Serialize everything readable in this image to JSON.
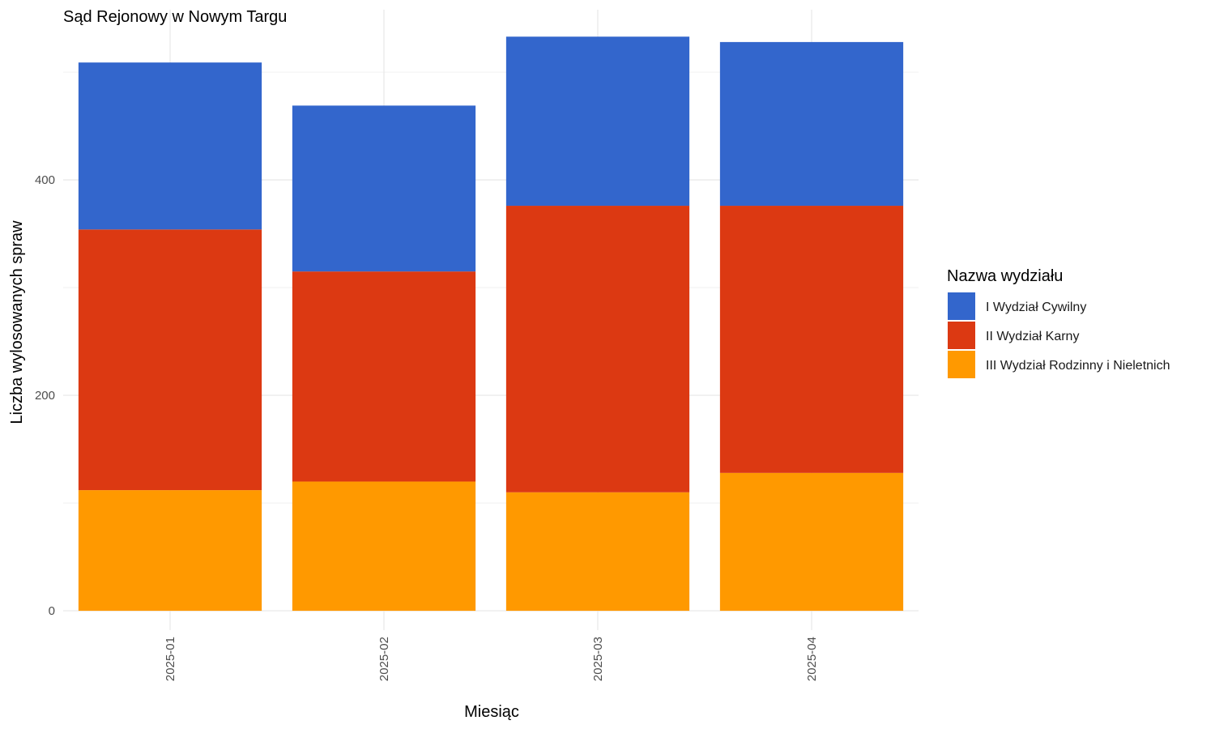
{
  "chart_data": {
    "type": "bar",
    "stacked": true,
    "title": "Sąd Rejonowy w Nowym Targu",
    "xlabel": "Miesiąc",
    "ylabel": "Liczba wylosowanych spraw",
    "categories": [
      "2025-01",
      "2025-02",
      "2025-03",
      "2025-04"
    ],
    "series": [
      {
        "name": "III Wydział Rodzinny i Nieletnich",
        "color": "#ff9900",
        "values": [
          112,
          120,
          110,
          128
        ]
      },
      {
        "name": "II Wydział Karny",
        "color": "#dc3912",
        "values": [
          242,
          195,
          266,
          248
        ]
      },
      {
        "name": "I Wydział Cywilny",
        "color": "#3366cc",
        "values": [
          155,
          154,
          157,
          152
        ]
      }
    ],
    "legend": {
      "title": "Nazwa wydziału",
      "position": "right",
      "order": [
        "I Wydział Cywilny",
        "II Wydział Karny",
        "III Wydział Rodzinny i Nieletnich"
      ]
    },
    "ylim": [
      -18,
      558
    ],
    "yticks": [
      0,
      200,
      400
    ],
    "grid": true
  }
}
